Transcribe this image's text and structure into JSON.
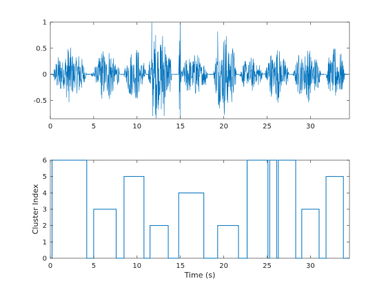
{
  "chart_data": [
    {
      "type": "line",
      "title": "",
      "xlabel": "",
      "ylabel": "",
      "xlim": [
        0,
        34.5
      ],
      "ylim": [
        -0.85,
        1
      ],
      "xticks": [
        0,
        5,
        10,
        15,
        20,
        25,
        30
      ],
      "yticks": [
        -0.5,
        0,
        0.5,
        1
      ],
      "grid": false,
      "color": "#0072BD",
      "series": [
        {
          "description_segments": [
            {
              "x": [
                0.3,
                4.2
              ],
              "amp": 0.55
            },
            {
              "x": [
                4.7,
                5.5
              ],
              "amp": 0.12
            },
            {
              "x": [
                5.0,
                8.0
              ],
              "amp": 0.55
            },
            {
              "x": [
                8.5,
                11.0
              ],
              "amp": 0.55
            },
            {
              "x": [
                11.3,
                14.0
              ],
              "amp": 0.95
            },
            {
              "x": [
                14.8,
                15.1
              ],
              "amp": 0.85
            },
            {
              "x": [
                15.0,
                18.2
              ],
              "amp": 0.45
            },
            {
              "x": [
                18.8,
                21.5
              ],
              "amp": 0.85
            },
            {
              "x": [
                21.8,
                24.5
              ],
              "amp": 0.35
            },
            {
              "x": [
                24.7,
                27.5
              ],
              "amp": 0.55
            },
            {
              "x": [
                28.0,
                31.2
              ],
              "amp": 0.55
            },
            {
              "x": [
                31.8,
                34.0
              ],
              "amp": 0.55
            }
          ],
          "peaks": [
            {
              "x": 11.7,
              "y": 1.0
            },
            {
              "x": 11.8,
              "y": -0.8
            },
            {
              "x": 15.0,
              "y": 1.0
            },
            {
              "x": 15.0,
              "y": -0.85
            },
            {
              "x": 19.3,
              "y": 0.82
            },
            {
              "x": 19.5,
              "y": -0.65
            }
          ]
        }
      ]
    },
    {
      "type": "line",
      "title": "",
      "xlabel": "Time (s)",
      "ylabel": "Cluster Index",
      "xlim": [
        0,
        34.5
      ],
      "ylim": [
        0,
        6
      ],
      "xticks": [
        0,
        5,
        10,
        15,
        20,
        25,
        30
      ],
      "yticks": [
        0,
        1,
        2,
        3,
        4,
        5,
        6
      ],
      "grid": false,
      "color": "#0072BD",
      "segments": [
        {
          "x0": 0.2,
          "x1": 4.2,
          "value": 6
        },
        {
          "x0": 4.2,
          "x1": 5.0,
          "value": 0
        },
        {
          "x0": 5.0,
          "x1": 7.6,
          "value": 3
        },
        {
          "x0": 7.6,
          "x1": 8.5,
          "value": 0
        },
        {
          "x0": 8.5,
          "x1": 10.8,
          "value": 5
        },
        {
          "x0": 10.8,
          "x1": 11.5,
          "value": 0
        },
        {
          "x0": 11.5,
          "x1": 13.6,
          "value": 2
        },
        {
          "x0": 13.6,
          "x1": 14.8,
          "value": 0
        },
        {
          "x0": 14.8,
          "x1": 17.7,
          "value": 4
        },
        {
          "x0": 17.7,
          "x1": 19.3,
          "value": 0
        },
        {
          "x0": 19.3,
          "x1": 21.7,
          "value": 2
        },
        {
          "x0": 21.7,
          "x1": 22.7,
          "value": 0
        },
        {
          "x0": 22.7,
          "x1": 25.1,
          "value": 6
        },
        {
          "x0": 25.1,
          "x1": 25.3,
          "value": 0
        },
        {
          "x0": 25.3,
          "x1": 26.1,
          "value": 6
        },
        {
          "x0": 26.1,
          "x1": 26.3,
          "value": 0
        },
        {
          "x0": 26.3,
          "x1": 28.3,
          "value": 6
        },
        {
          "x0": 28.3,
          "x1": 29.0,
          "value": 0
        },
        {
          "x0": 29.0,
          "x1": 31.0,
          "value": 3
        },
        {
          "x0": 31.0,
          "x1": 31.8,
          "value": 0
        },
        {
          "x0": 31.8,
          "x1": 33.8,
          "value": 5
        },
        {
          "x0": 33.8,
          "x1": 34.5,
          "value": 0
        }
      ]
    }
  ]
}
